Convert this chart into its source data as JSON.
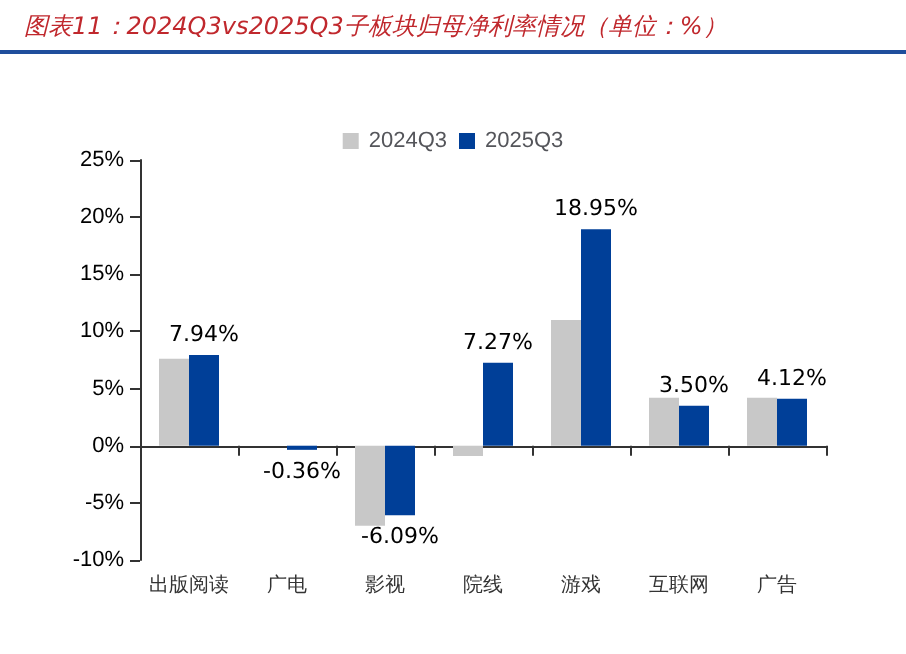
{
  "chart_data": {
    "type": "bar",
    "title": "图表11：2024Q3vs2025Q3子板块归母净利率情况（单位：%）",
    "categories": [
      "出版阅读",
      "广电",
      "影视",
      "院线",
      "游戏",
      "互联网",
      "广告"
    ],
    "series": [
      {
        "name": "2024Q3",
        "color": "#c8c8c8",
        "values": [
          7.6,
          null,
          -7.0,
          -0.9,
          11.0,
          4.2,
          4.2
        ]
      },
      {
        "name": "2025Q3",
        "color": "#003f98",
        "values": [
          7.94,
          -0.36,
          -6.09,
          7.27,
          18.95,
          3.5,
          4.12
        ],
        "value_labels": [
          "7.94%",
          "-0.36%",
          "-6.09%",
          "7.27%",
          "18.95%",
          "3.50%",
          "4.12%"
        ]
      }
    ],
    "ylim": [
      -10,
      25
    ],
    "yticks": [
      {
        "value": -10,
        "label": "-10%"
      },
      {
        "value": -5,
        "label": "-5%"
      },
      {
        "value": 0,
        "label": "0%"
      },
      {
        "value": 5,
        "label": "5%"
      },
      {
        "value": 10,
        "label": "10%"
      },
      {
        "value": 15,
        "label": "15%"
      },
      {
        "value": 20,
        "label": "20%"
      },
      {
        "value": 25,
        "label": "25%"
      }
    ],
    "legend": "top"
  }
}
